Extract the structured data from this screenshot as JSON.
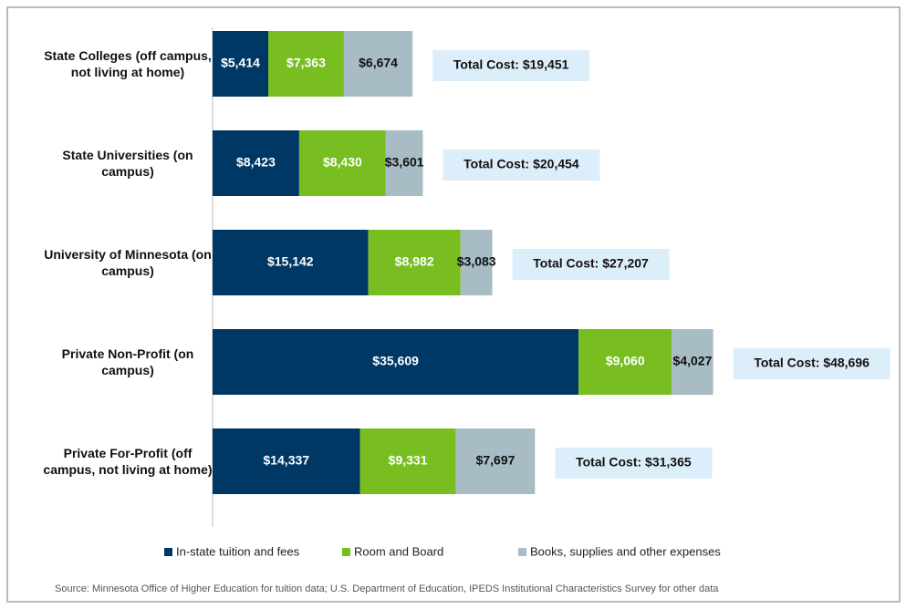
{
  "chart_data": {
    "type": "stacked_bar_horizontal",
    "categories": [
      "State Colleges (off campus, not living at home)",
      "State Universities (on campus)",
      "University of Minnesota (on campus)",
      "Private Non-Profit (on campus)",
      "Private For-Profit (off campus, not living at home)"
    ],
    "series": [
      {
        "name": "In-state tuition and fees",
        "color": "#003865",
        "label_color": "#ffffff",
        "values": [
          5414,
          8423,
          15142,
          35609,
          14337
        ],
        "value_labels": [
          "$5,414",
          "$8,423",
          "$15,142",
          "$35,609",
          "$14,337"
        ]
      },
      {
        "name": "Room and Board",
        "color": "#78be20",
        "label_color": "#ffffff",
        "values": [
          7363,
          8430,
          8982,
          9060,
          9331
        ],
        "value_labels": [
          "$7,363",
          "$8,430",
          "$8,982",
          "$9,060",
          "$9,331"
        ]
      },
      {
        "name": "Books, supplies and other expenses",
        "color": "#a7bcc4",
        "label_color": "#111111",
        "values": [
          6674,
          3601,
          3083,
          4027,
          7697
        ],
        "value_labels": [
          "$6,674",
          "$3,601",
          "$3,083",
          "$4,027",
          "$7,697"
        ]
      }
    ],
    "total_labels": [
      "Total Cost: $19,451",
      "Total Cost: $20,454",
      "Total Cost: $27,207",
      "Total Cost: $48,696",
      "Total Cost: $31,365"
    ],
    "xlim": [
      0,
      60000
    ],
    "source": "Source: Minnesota Office of Higher Education for tuition data; U.S. Department of  Education, IPEDS Institutional Characteristics Survey for other data"
  }
}
